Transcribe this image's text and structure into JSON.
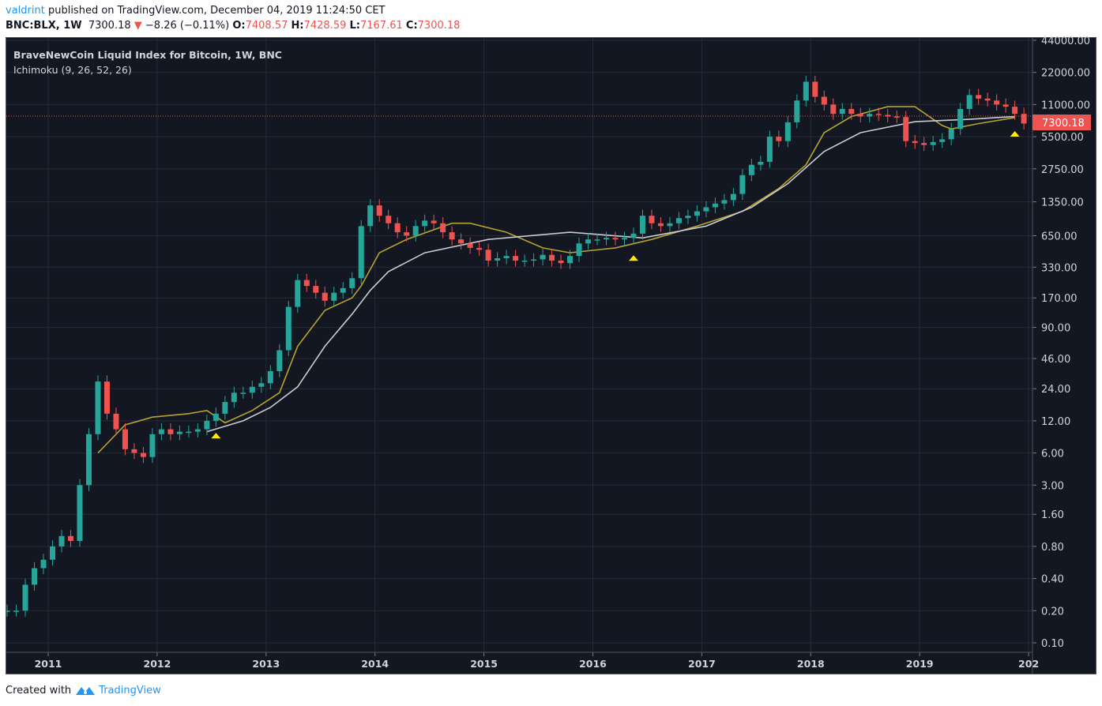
{
  "header": {
    "user": "valdrint",
    "published": "published on TradingView.com, December 04, 2019 11:24:50 CET",
    "symbol": "BNC:BLX, 1W",
    "last": "7300.18",
    "change": "−8.26 (−0.11%)",
    "o_label": "O:",
    "open": "7408.57",
    "h_label": "H:",
    "high": "7428.59",
    "l_label": "L:",
    "low": "7167.61",
    "c_label": "C:",
    "close": "7300.18"
  },
  "legend": {
    "title": "BraveNewCoin Liquid Index for Bitcoin, 1W, BNC",
    "indicator": "Ichimoku (9, 26, 52, 26)"
  },
  "footer": {
    "created": "Created with",
    "brand": "TradingView"
  },
  "colors": {
    "background": "#131722",
    "up": "#26a69a",
    "down": "#ef5350",
    "line_yellow": "#b5a330",
    "line_white": "#c9cbd1",
    "marker": "#ffeb00",
    "price_line": "#ef5350"
  },
  "chart_data": {
    "type": "candlestick",
    "title": "BraveNewCoin Liquid Index for Bitcoin, 1W, BNC",
    "y_scale": "log",
    "ylim": [
      0.09,
      50000
    ],
    "y_ticks": [
      "44000.00",
      "22000.00",
      "11000.00",
      "5500.00",
      "2750.00",
      "1350.00",
      "650.00",
      "330.00",
      "170.00",
      "90.00",
      "46.00",
      "24.00",
      "12.00",
      "6.00",
      "3.00",
      "1.60",
      "0.80",
      "0.40",
      "0.20",
      "0.10"
    ],
    "x_ticks": [
      "2011",
      "2012",
      "2013",
      "2014",
      "2015",
      "2016",
      "2017",
      "2018",
      "2019",
      "202"
    ],
    "grid": true,
    "current_price_label": "7300.18",
    "current_price": 7300.18,
    "closes": [
      [
        "2010-08",
        0.2
      ],
      [
        "2010-09",
        0.2
      ],
      [
        "2010-10",
        0.35
      ],
      [
        "2010-11",
        0.5
      ],
      [
        "2010-12",
        0.6
      ],
      [
        "2011-01",
        0.8
      ],
      [
        "2011-02",
        1.0
      ],
      [
        "2011-03",
        0.9
      ],
      [
        "2011-04",
        3
      ],
      [
        "2011-05",
        9
      ],
      [
        "2011-06",
        28
      ],
      [
        "2011-07",
        14
      ],
      [
        "2011-08",
        10
      ],
      [
        "2011-09",
        6.5
      ],
      [
        "2011-10",
        6
      ],
      [
        "2011-11",
        5.5
      ],
      [
        "2011-12",
        9
      ],
      [
        "2012-01",
        10
      ],
      [
        "2012-02",
        9
      ],
      [
        "2012-03",
        9.5
      ],
      [
        "2012-04",
        9.5
      ],
      [
        "2012-05",
        10
      ],
      [
        "2012-06",
        12
      ],
      [
        "2012-07",
        14
      ],
      [
        "2012-08",
        18
      ],
      [
        "2012-09",
        22
      ],
      [
        "2012-10",
        22
      ],
      [
        "2012-11",
        25
      ],
      [
        "2012-12",
        27
      ],
      [
        "2013-01",
        35
      ],
      [
        "2013-02",
        55
      ],
      [
        "2013-03",
        140
      ],
      [
        "2013-04",
        250
      ],
      [
        "2013-05",
        220
      ],
      [
        "2013-06",
        190
      ],
      [
        "2013-07",
        160
      ],
      [
        "2013-08",
        190
      ],
      [
        "2013-09",
        210
      ],
      [
        "2013-10",
        260
      ],
      [
        "2013-11",
        800
      ],
      [
        "2013-12",
        1250
      ],
      [
        "2014-01",
        1000
      ],
      [
        "2014-02",
        850
      ],
      [
        "2014-03",
        700
      ],
      [
        "2014-04",
        650
      ],
      [
        "2014-05",
        800
      ],
      [
        "2014-06",
        900
      ],
      [
        "2014-07",
        850
      ],
      [
        "2014-08",
        700
      ],
      [
        "2014-09",
        600
      ],
      [
        "2014-10",
        550
      ],
      [
        "2014-11",
        500
      ],
      [
        "2014-12",
        480
      ],
      [
        "2015-01",
        380
      ],
      [
        "2015-02",
        400
      ],
      [
        "2015-03",
        420
      ],
      [
        "2015-04",
        380
      ],
      [
        "2015-05",
        380
      ],
      [
        "2015-06",
        390
      ],
      [
        "2015-07",
        430
      ],
      [
        "2015-08",
        380
      ],
      [
        "2015-09",
        360
      ],
      [
        "2015-10",
        420
      ],
      [
        "2015-11",
        550
      ],
      [
        "2015-12",
        600
      ],
      [
        "2016-01",
        600
      ],
      [
        "2016-02",
        620
      ],
      [
        "2016-03",
        600
      ],
      [
        "2016-04",
        620
      ],
      [
        "2016-05",
        680
      ],
      [
        "2016-06",
        1000
      ],
      [
        "2016-07",
        850
      ],
      [
        "2016-08",
        800
      ],
      [
        "2016-09",
        850
      ],
      [
        "2016-10",
        950
      ],
      [
        "2016-11",
        1000
      ],
      [
        "2016-12",
        1100
      ],
      [
        "2017-01",
        1200
      ],
      [
        "2017-02",
        1300
      ],
      [
        "2017-03",
        1400
      ],
      [
        "2017-04",
        1600
      ],
      [
        "2017-05",
        2400
      ],
      [
        "2017-06",
        3000
      ],
      [
        "2017-07",
        3200
      ],
      [
        "2017-08",
        5500
      ],
      [
        "2017-09",
        5000
      ],
      [
        "2017-10",
        7500
      ],
      [
        "2017-11",
        12000
      ],
      [
        "2017-12",
        18000
      ],
      [
        "2018-01",
        13000
      ],
      [
        "2018-02",
        11000
      ],
      [
        "2018-03",
        9000
      ],
      [
        "2018-04",
        10000
      ],
      [
        "2018-05",
        9000
      ],
      [
        "2018-06",
        8500
      ],
      [
        "2018-07",
        9000
      ],
      [
        "2018-08",
        8800
      ],
      [
        "2018-09",
        8500
      ],
      [
        "2018-10",
        8400
      ],
      [
        "2018-11",
        5000
      ],
      [
        "2018-12",
        4800
      ],
      [
        "2019-01",
        4600
      ],
      [
        "2019-02",
        4900
      ],
      [
        "2019-03",
        5200
      ],
      [
        "2019-04",
        6500
      ],
      [
        "2019-05",
        10000
      ],
      [
        "2019-06",
        13500
      ],
      [
        "2019-07",
        12500
      ],
      [
        "2019-08",
        12000
      ],
      [
        "2019-09",
        11000
      ],
      [
        "2019-10",
        10500
      ],
      [
        "2019-11",
        9000
      ],
      [
        "2019-12",
        7300.18
      ]
    ],
    "lines": [
      {
        "color": "#b5a330",
        "points": [
          [
            "2011-06",
            6
          ],
          [
            "2011-09",
            11
          ],
          [
            "2011-12",
            13
          ],
          [
            "2012-04",
            14
          ],
          [
            "2012-06",
            15
          ],
          [
            "2012-08",
            11.5
          ],
          [
            "2012-11",
            15
          ],
          [
            "2013-02",
            22
          ],
          [
            "2013-04",
            60
          ],
          [
            "2013-07",
            130
          ],
          [
            "2013-10",
            170
          ],
          [
            "2013-11",
            220
          ],
          [
            "2014-01",
            450
          ],
          [
            "2014-04",
            600
          ],
          [
            "2014-09",
            850
          ],
          [
            "2014-11",
            850
          ],
          [
            "2015-03",
            700
          ],
          [
            "2015-07",
            500
          ],
          [
            "2015-10",
            450
          ],
          [
            "2016-03",
            500
          ],
          [
            "2016-07",
            600
          ],
          [
            "2016-12",
            800
          ],
          [
            "2017-05",
            1100
          ],
          [
            "2017-09",
            1800
          ],
          [
            "2017-12",
            3000
          ],
          [
            "2018-02",
            6000
          ],
          [
            "2018-05",
            8500
          ],
          [
            "2018-09",
            10500
          ],
          [
            "2018-12",
            10500
          ],
          [
            "2019-03",
            7000
          ],
          [
            "2019-04",
            6500
          ],
          [
            "2019-07",
            7300
          ],
          [
            "2019-11",
            8300
          ]
        ]
      },
      {
        "color": "#c9cbd1",
        "points": [
          [
            "2012-06",
            9.5
          ],
          [
            "2012-10",
            12
          ],
          [
            "2013-01",
            16
          ],
          [
            "2013-04",
            25
          ],
          [
            "2013-07",
            60
          ],
          [
            "2013-10",
            120
          ],
          [
            "2013-12",
            200
          ],
          [
            "2014-02",
            300
          ],
          [
            "2014-06",
            450
          ],
          [
            "2015-01",
            600
          ],
          [
            "2015-10",
            700
          ],
          [
            "2016-06",
            620
          ],
          [
            "2017-01",
            800
          ],
          [
            "2017-06",
            1200
          ],
          [
            "2017-10",
            2000
          ],
          [
            "2018-02",
            4000
          ],
          [
            "2018-06",
            6000
          ],
          [
            "2018-12",
            7600
          ],
          [
            "2019-06",
            8000
          ],
          [
            "2019-11",
            8500
          ]
        ]
      }
    ],
    "markers": [
      [
        "2012-07",
        8.8
      ],
      [
        "2016-05",
        405
      ],
      [
        "2019-11",
        5900
      ]
    ]
  }
}
